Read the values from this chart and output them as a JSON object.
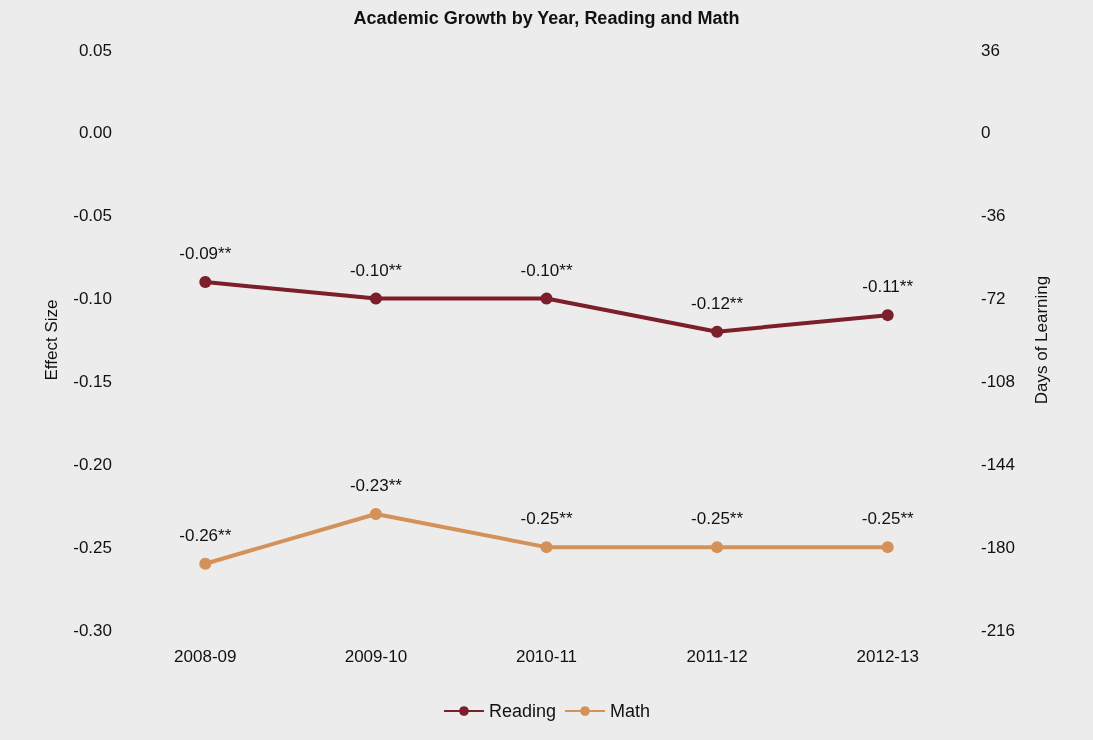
{
  "chart_data": {
    "type": "line",
    "title": "Academic Growth by Year, Reading and Math",
    "categories": [
      "2008-09",
      "2009-10",
      "2010-11",
      "2011-12",
      "2012-13"
    ],
    "series": [
      {
        "name": "Reading",
        "color": "#7b1f2a",
        "values": [
          -0.09,
          -0.1,
          -0.1,
          -0.12,
          -0.11
        ],
        "value_labels": [
          "-0.09**",
          "-0.10**",
          "-0.10**",
          "-0.12**",
          "-0.11**"
        ]
      },
      {
        "name": "Math",
        "color": "#d4915a",
        "values": [
          -0.26,
          -0.23,
          -0.25,
          -0.25,
          -0.25
        ],
        "value_labels": [
          "-0.26**",
          "-0.23**",
          "-0.25**",
          "-0.25**",
          "-0.25**"
        ]
      }
    ],
    "ylabel": "Effect Size",
    "y2label": "Days of Learning",
    "ylim": [
      -0.3,
      0.05
    ],
    "yticks": [
      {
        "value": -0.3,
        "label": "-0.30"
      },
      {
        "value": -0.25,
        "label": "-0.25"
      },
      {
        "value": -0.2,
        "label": "-0.20"
      },
      {
        "value": -0.15,
        "label": "-0.15"
      },
      {
        "value": -0.1,
        "label": "-0.10"
      },
      {
        "value": -0.05,
        "label": "-0.05"
      },
      {
        "value": 0,
        "label": "0.00"
      },
      {
        "value": 0.05,
        "label": "0.05"
      }
    ],
    "y2lim": [
      -216,
      36
    ],
    "y2ticks": [
      -216,
      -180,
      -144,
      -108,
      -72,
      -36,
      0,
      36
    ],
    "grid": false,
    "legend": "bottom",
    "marker": "circle",
    "line_style": "solid"
  }
}
